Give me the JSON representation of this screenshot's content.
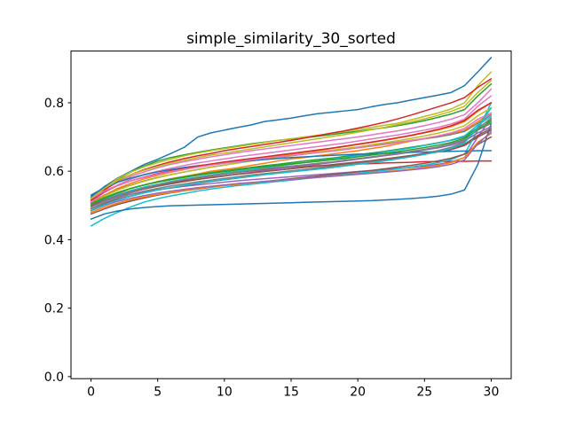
{
  "colors": {
    "background": "#ffffff",
    "spine": "#000000",
    "text": "#000000"
  },
  "chart_data": {
    "type": "line",
    "title": "simple_similarity_30_sorted",
    "xlabel": "",
    "ylabel": "",
    "grid": false,
    "legend": false,
    "line_width": 1.5,
    "xlim": [
      -1.5,
      31.5
    ],
    "ylim": [
      -0.006,
      0.951
    ],
    "xticks": [
      0,
      5,
      10,
      15,
      20,
      25,
      30
    ],
    "ytick_labels": [
      "0.0",
      "0.2",
      "0.4",
      "0.6",
      "0.8"
    ],
    "ytick_values": [
      0,
      0.2,
      0.4,
      0.6,
      0.8
    ],
    "x": [
      0,
      1,
      2,
      3,
      4,
      5,
      6,
      7,
      8,
      9,
      10,
      11,
      12,
      13,
      14,
      15,
      16,
      17,
      18,
      19,
      20,
      21,
      22,
      23,
      24,
      25,
      26,
      27,
      28,
      29,
      30
    ],
    "series": [
      {
        "color": "#1f77b4",
        "values": [
          0.525,
          0.555,
          0.58,
          0.6,
          0.62,
          0.635,
          0.652,
          0.67,
          0.7,
          0.712,
          0.72,
          0.728,
          0.735,
          0.745,
          0.75,
          0.755,
          0.762,
          0.768,
          0.772,
          0.776,
          0.78,
          0.788,
          0.795,
          0.8,
          0.808,
          0.815,
          0.822,
          0.83,
          0.85,
          0.89,
          0.932
        ]
      },
      {
        "color": "#ff7f0e",
        "values": [
          0.505,
          0.52,
          0.535,
          0.55,
          0.56,
          0.57,
          0.578,
          0.585,
          0.592,
          0.6,
          0.605,
          0.61,
          0.617,
          0.623,
          0.63,
          0.636,
          0.64,
          0.645,
          0.65,
          0.655,
          0.66,
          0.666,
          0.672,
          0.68,
          0.688,
          0.695,
          0.7,
          0.71,
          0.72,
          0.745,
          0.77
        ]
      },
      {
        "color": "#2ca02c",
        "values": [
          0.52,
          0.55,
          0.575,
          0.598,
          0.615,
          0.63,
          0.64,
          0.648,
          0.655,
          0.662,
          0.668,
          0.674,
          0.68,
          0.685,
          0.69,
          0.694,
          0.698,
          0.702,
          0.707,
          0.712,
          0.717,
          0.722,
          0.727,
          0.733,
          0.74,
          0.748,
          0.757,
          0.767,
          0.78,
          0.82,
          0.855
        ]
      },
      {
        "color": "#d62728",
        "values": [
          0.495,
          0.515,
          0.53,
          0.542,
          0.552,
          0.56,
          0.567,
          0.573,
          0.58,
          0.586,
          0.592,
          0.597,
          0.601,
          0.605,
          0.608,
          0.611,
          0.614,
          0.616,
          0.618,
          0.62,
          0.621,
          0.622,
          0.624,
          0.625,
          0.626,
          0.628,
          0.628,
          0.629,
          0.629,
          0.63,
          0.63
        ]
      },
      {
        "color": "#9467bd",
        "values": [
          0.5,
          0.515,
          0.525,
          0.533,
          0.54,
          0.546,
          0.551,
          0.556,
          0.56,
          0.564,
          0.568,
          0.572,
          0.575,
          0.578,
          0.581,
          0.584,
          0.587,
          0.59,
          0.593,
          0.596,
          0.599,
          0.602,
          0.605,
          0.608,
          0.611,
          0.615,
          0.62,
          0.627,
          0.64,
          0.7,
          0.755
        ]
      },
      {
        "color": "#8c564b",
        "values": [
          0.49,
          0.505,
          0.518,
          0.528,
          0.537,
          0.545,
          0.552,
          0.558,
          0.564,
          0.57,
          0.575,
          0.58,
          0.585,
          0.59,
          0.595,
          0.6,
          0.605,
          0.61,
          0.615,
          0.62,
          0.625,
          0.63,
          0.635,
          0.64,
          0.645,
          0.65,
          0.656,
          0.663,
          0.675,
          0.7,
          0.72
        ]
      },
      {
        "color": "#e377c2",
        "values": [
          0.515,
          0.545,
          0.568,
          0.585,
          0.598,
          0.61,
          0.62,
          0.628,
          0.635,
          0.642,
          0.648,
          0.654,
          0.66,
          0.665,
          0.67,
          0.675,
          0.68,
          0.685,
          0.69,
          0.695,
          0.7,
          0.706,
          0.712,
          0.718,
          0.725,
          0.733,
          0.742,
          0.752,
          0.765,
          0.8,
          0.84
        ]
      },
      {
        "color": "#7f7f7f",
        "values": [
          0.51,
          0.53,
          0.547,
          0.56,
          0.572,
          0.582,
          0.59,
          0.598,
          0.605,
          0.612,
          0.618,
          0.624,
          0.63,
          0.635,
          0.64,
          0.645,
          0.65,
          0.655,
          0.66,
          0.665,
          0.67,
          0.675,
          0.68,
          0.685,
          0.69,
          0.695,
          0.7,
          0.707,
          0.716,
          0.74,
          0.765
        ]
      },
      {
        "color": "#bcbd22",
        "values": [
          0.515,
          0.55,
          0.578,
          0.598,
          0.613,
          0.625,
          0.635,
          0.645,
          0.653,
          0.66,
          0.666,
          0.672,
          0.678,
          0.684,
          0.69,
          0.695,
          0.7,
          0.705,
          0.71,
          0.716,
          0.722,
          0.728,
          0.734,
          0.74,
          0.75,
          0.76,
          0.77,
          0.782,
          0.8,
          0.85,
          0.89
        ]
      },
      {
        "color": "#17becf",
        "values": [
          0.44,
          0.462,
          0.48,
          0.496,
          0.51,
          0.52,
          0.528,
          0.535,
          0.542,
          0.548,
          0.553,
          0.558,
          0.562,
          0.566,
          0.57,
          0.574,
          0.578,
          0.582,
          0.586,
          0.59,
          0.594,
          0.598,
          0.602,
          0.607,
          0.612,
          0.618,
          0.625,
          0.634,
          0.65,
          0.72,
          0.8
        ]
      },
      {
        "color": "#1f77b4",
        "values": [
          0.46,
          0.475,
          0.484,
          0.49,
          0.494,
          0.497,
          0.499,
          0.5,
          0.501,
          0.502,
          0.503,
          0.504,
          0.505,
          0.506,
          0.507,
          0.508,
          0.509,
          0.51,
          0.511,
          0.512,
          0.513,
          0.514,
          0.516,
          0.518,
          0.52,
          0.523,
          0.527,
          0.533,
          0.545,
          0.62,
          0.74
        ]
      },
      {
        "color": "#ff7f0e",
        "values": [
          0.505,
          0.53,
          0.55,
          0.565,
          0.578,
          0.588,
          0.597,
          0.605,
          0.612,
          0.618,
          0.624,
          0.63,
          0.635,
          0.64,
          0.645,
          0.65,
          0.655,
          0.66,
          0.666,
          0.672,
          0.678,
          0.684,
          0.69,
          0.697,
          0.704,
          0.712,
          0.72,
          0.73,
          0.745,
          0.775,
          0.8
        ]
      },
      {
        "color": "#2ca02c",
        "values": [
          0.5,
          0.52,
          0.537,
          0.55,
          0.56,
          0.569,
          0.577,
          0.584,
          0.59,
          0.596,
          0.601,
          0.606,
          0.611,
          0.616,
          0.62,
          0.625,
          0.63,
          0.634,
          0.638,
          0.643,
          0.648,
          0.653,
          0.658,
          0.664,
          0.67,
          0.676,
          0.683,
          0.69,
          0.7,
          0.728,
          0.75
        ]
      },
      {
        "color": "#d62728",
        "values": [
          0.51,
          0.545,
          0.572,
          0.59,
          0.605,
          0.617,
          0.628,
          0.637,
          0.645,
          0.652,
          0.66,
          0.666,
          0.672,
          0.678,
          0.684,
          0.69,
          0.697,
          0.704,
          0.711,
          0.718,
          0.726,
          0.734,
          0.743,
          0.753,
          0.764,
          0.776,
          0.788,
          0.8,
          0.815,
          0.845,
          0.87
        ]
      },
      {
        "color": "#9467bd",
        "values": [
          0.495,
          0.512,
          0.526,
          0.538,
          0.548,
          0.556,
          0.563,
          0.57,
          0.576,
          0.582,
          0.587,
          0.592,
          0.597,
          0.602,
          0.607,
          0.612,
          0.616,
          0.62,
          0.625,
          0.63,
          0.635,
          0.64,
          0.645,
          0.65,
          0.656,
          0.662,
          0.668,
          0.676,
          0.688,
          0.712,
          0.73
        ]
      },
      {
        "color": "#8c564b",
        "values": [
          0.475,
          0.49,
          0.503,
          0.513,
          0.522,
          0.53,
          0.537,
          0.543,
          0.548,
          0.553,
          0.558,
          0.562,
          0.566,
          0.57,
          0.574,
          0.578,
          0.582,
          0.586,
          0.59,
          0.594,
          0.598,
          0.602,
          0.607,
          0.612,
          0.617,
          0.623,
          0.63,
          0.638,
          0.65,
          0.678,
          0.7
        ]
      },
      {
        "color": "#e377c2",
        "values": [
          0.51,
          0.538,
          0.56,
          0.577,
          0.59,
          0.6,
          0.609,
          0.617,
          0.624,
          0.63,
          0.636,
          0.642,
          0.647,
          0.652,
          0.657,
          0.662,
          0.667,
          0.672,
          0.677,
          0.682,
          0.688,
          0.694,
          0.7,
          0.706,
          0.713,
          0.72,
          0.728,
          0.738,
          0.752,
          0.79,
          0.82
        ]
      },
      {
        "color": "#7f7f7f",
        "values": [
          0.49,
          0.508,
          0.522,
          0.533,
          0.542,
          0.55,
          0.557,
          0.563,
          0.569,
          0.574,
          0.579,
          0.584,
          0.589,
          0.593,
          0.597,
          0.601,
          0.605,
          0.609,
          0.613,
          0.618,
          0.623,
          0.628,
          0.633,
          0.639,
          0.645,
          0.652,
          0.66,
          0.67,
          0.685,
          0.725,
          0.755
        ]
      },
      {
        "color": "#bcbd22",
        "values": [
          0.505,
          0.527,
          0.545,
          0.559,
          0.571,
          0.581,
          0.59,
          0.598,
          0.605,
          0.612,
          0.618,
          0.624,
          0.63,
          0.636,
          0.641,
          0.646,
          0.651,
          0.656,
          0.661,
          0.666,
          0.671,
          0.677,
          0.683,
          0.689,
          0.696,
          0.703,
          0.711,
          0.72,
          0.733,
          0.762,
          0.785
        ]
      },
      {
        "color": "#17becf",
        "values": [
          0.5,
          0.518,
          0.532,
          0.544,
          0.554,
          0.562,
          0.57,
          0.577,
          0.583,
          0.589,
          0.595,
          0.6,
          0.605,
          0.61,
          0.615,
          0.62,
          0.625,
          0.63,
          0.635,
          0.64,
          0.645,
          0.65,
          0.656,
          0.662,
          0.668,
          0.675,
          0.682,
          0.691,
          0.703,
          0.735,
          0.76
        ]
      },
      {
        "color": "#1f77b4",
        "values": [
          0.53,
          0.552,
          0.568,
          0.58,
          0.59,
          0.598,
          0.605,
          0.611,
          0.616,
          0.62,
          0.624,
          0.628,
          0.631,
          0.634,
          0.637,
          0.64,
          0.642,
          0.644,
          0.646,
          0.648,
          0.65,
          0.651,
          0.652,
          0.654,
          0.655,
          0.656,
          0.657,
          0.658,
          0.659,
          0.66,
          0.66
        ]
      },
      {
        "color": "#ff7f0e",
        "values": [
          0.48,
          0.495,
          0.507,
          0.517,
          0.525,
          0.532,
          0.538,
          0.544,
          0.549,
          0.554,
          0.558,
          0.562,
          0.566,
          0.57,
          0.573,
          0.576,
          0.579,
          0.582,
          0.585,
          0.588,
          0.591,
          0.594,
          0.598,
          0.602,
          0.606,
          0.611,
          0.617,
          0.625,
          0.64,
          0.685,
          0.71
        ]
      },
      {
        "color": "#2ca02c",
        "values": [
          0.505,
          0.523,
          0.538,
          0.55,
          0.56,
          0.568,
          0.575,
          0.582,
          0.588,
          0.594,
          0.599,
          0.604,
          0.609,
          0.613,
          0.617,
          0.621,
          0.625,
          0.629,
          0.633,
          0.637,
          0.642,
          0.647,
          0.652,
          0.657,
          0.663,
          0.669,
          0.676,
          0.684,
          0.696,
          0.722,
          0.745
        ]
      },
      {
        "color": "#d62728",
        "values": [
          0.515,
          0.54,
          0.558,
          0.572,
          0.583,
          0.593,
          0.601,
          0.608,
          0.615,
          0.621,
          0.627,
          0.632,
          0.637,
          0.642,
          0.647,
          0.652,
          0.657,
          0.662,
          0.667,
          0.673,
          0.679,
          0.685,
          0.691,
          0.698,
          0.705,
          0.713,
          0.722,
          0.733,
          0.748,
          0.778,
          0.8
        ]
      },
      {
        "color": "#9467bd",
        "values": [
          0.485,
          0.5,
          0.512,
          0.521,
          0.529,
          0.536,
          0.542,
          0.547,
          0.552,
          0.556,
          0.56,
          0.564,
          0.567,
          0.57,
          0.573,
          0.576,
          0.579,
          0.582,
          0.585,
          0.588,
          0.591,
          0.594,
          0.597,
          0.6,
          0.604,
          0.608,
          0.613,
          0.62,
          0.633,
          0.68,
          0.715
        ]
      },
      {
        "color": "#8c564b",
        "values": [
          0.5,
          0.516,
          0.529,
          0.54,
          0.549,
          0.557,
          0.564,
          0.57,
          0.576,
          0.581,
          0.586,
          0.591,
          0.595,
          0.599,
          0.603,
          0.607,
          0.611,
          0.615,
          0.619,
          0.623,
          0.627,
          0.631,
          0.636,
          0.641,
          0.646,
          0.652,
          0.658,
          0.666,
          0.678,
          0.705,
          0.725
        ]
      },
      {
        "color": "#e377c2",
        "values": [
          0.52,
          0.542,
          0.559,
          0.572,
          0.582,
          0.591,
          0.599,
          0.606,
          0.612,
          0.618,
          0.623,
          0.628,
          0.633,
          0.638,
          0.642,
          0.646,
          0.65,
          0.654,
          0.658,
          0.663,
          0.668,
          0.673,
          0.678,
          0.684,
          0.69,
          0.696,
          0.703,
          0.712,
          0.725,
          0.752,
          0.77
        ]
      },
      {
        "color": "#7f7f7f",
        "values": [
          0.495,
          0.514,
          0.529,
          0.541,
          0.551,
          0.56,
          0.568,
          0.575,
          0.581,
          0.587,
          0.592,
          0.597,
          0.602,
          0.607,
          0.611,
          0.615,
          0.619,
          0.623,
          0.627,
          0.632,
          0.637,
          0.642,
          0.647,
          0.652,
          0.658,
          0.664,
          0.671,
          0.68,
          0.692,
          0.72,
          0.74
        ]
      },
      {
        "color": "#bcbd22",
        "values": [
          0.52,
          0.55,
          0.573,
          0.59,
          0.603,
          0.614,
          0.624,
          0.632,
          0.64,
          0.647,
          0.653,
          0.659,
          0.665,
          0.671,
          0.677,
          0.683,
          0.689,
          0.695,
          0.701,
          0.707,
          0.714,
          0.721,
          0.728,
          0.736,
          0.744,
          0.753,
          0.763,
          0.775,
          0.79,
          0.83,
          0.865
        ]
      },
      {
        "color": "#17becf",
        "values": [
          0.485,
          0.502,
          0.516,
          0.527,
          0.537,
          0.545,
          0.552,
          0.559,
          0.565,
          0.571,
          0.576,
          0.581,
          0.586,
          0.59,
          0.594,
          0.598,
          0.602,
          0.606,
          0.61,
          0.615,
          0.62,
          0.625,
          0.63,
          0.636,
          0.642,
          0.649,
          0.657,
          0.667,
          0.682,
          0.73,
          0.785
        ]
      }
    ]
  }
}
